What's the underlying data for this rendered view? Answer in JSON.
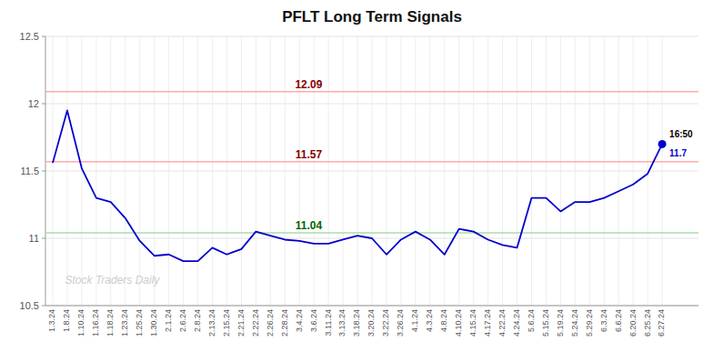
{
  "chart_data": {
    "type": "line",
    "title": "PFLT Long Term Signals",
    "categories": [
      "1.3.24",
      "1.8.24",
      "1.10.24",
      "1.16.24",
      "1.18.24",
      "1.23.24",
      "1.25.24",
      "1.30.24",
      "2.1.24",
      "2.6.24",
      "2.8.24",
      "2.13.24",
      "2.15.24",
      "2.21.24",
      "2.22.24",
      "2.26.24",
      "2.28.24",
      "3.4.24",
      "3.6.24",
      "3.11.24",
      "3.13.24",
      "3.18.24",
      "3.20.24",
      "3.22.24",
      "3.26.24",
      "4.1.24",
      "4.3.24",
      "4.8.24",
      "4.10.24",
      "4.15.24",
      "4.17.24",
      "4.22.24",
      "4.24.24",
      "5.6.24",
      "5.15.24",
      "5.19.24",
      "5.24.24",
      "5.29.24",
      "6.3.24",
      "6.6.24",
      "6.20.24",
      "6.25.24",
      "6.27.24"
    ],
    "values": [
      11.56,
      11.95,
      11.52,
      11.3,
      11.27,
      11.15,
      10.98,
      10.87,
      10.88,
      10.83,
      10.83,
      10.93,
      10.88,
      10.92,
      11.05,
      11.02,
      10.99,
      10.98,
      10.96,
      10.96,
      10.99,
      11.02,
      11.0,
      10.88,
      10.99,
      11.05,
      10.99,
      10.88,
      11.07,
      11.05,
      10.99,
      10.95,
      10.93,
      11.3,
      11.3,
      11.2,
      11.27,
      11.27,
      11.3,
      11.35,
      11.4,
      11.48,
      11.7
    ],
    "color": "#0000cc",
    "ylim": [
      10.5,
      12.5
    ],
    "yticks": [
      10.5,
      11,
      11.5,
      12,
      12.5
    ],
    "grid": true,
    "hlines": [
      {
        "value": 12.09,
        "color": "#ffaaaa",
        "label_color": "#880000"
      },
      {
        "value": 11.57,
        "color": "#ffaaaa",
        "label_color": "#880000"
      },
      {
        "value": 11.04,
        "color": "#aaddaa",
        "label_color": "#006600"
      }
    ],
    "annotations": [
      {
        "text": "16:50",
        "color": "#000000"
      },
      {
        "text": "11.7",
        "color": "#0000cc"
      }
    ],
    "watermark": "Stock Traders Daily"
  }
}
